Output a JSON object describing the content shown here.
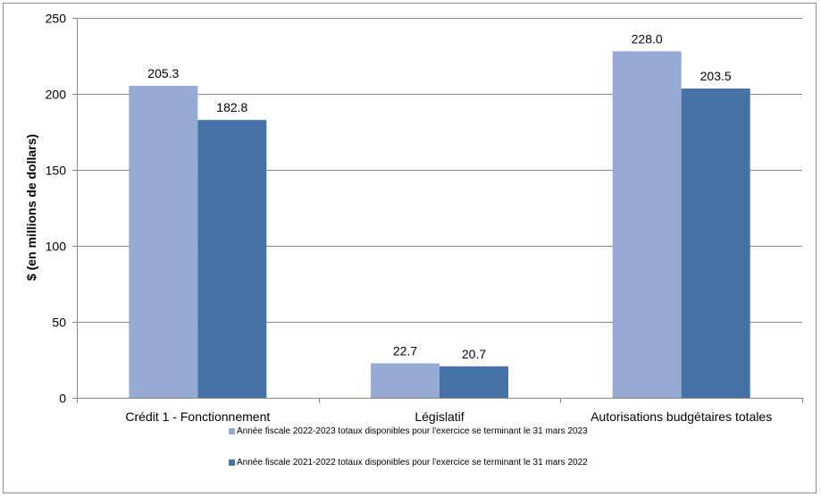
{
  "chart_data": {
    "type": "bar",
    "title": "",
    "xlabel": "",
    "ylabel": "$ (en millions de dollars)",
    "ylim": [
      0,
      250
    ],
    "yticks": [
      0,
      50,
      100,
      150,
      200,
      250
    ],
    "categories": [
      "Crédit 1 - Fonctionnement",
      "Législatif",
      "Autorisations budgétaires totales"
    ],
    "series": [
      {
        "name": "Année fiscale 2022-2023 totaux disponibles pour l'exercice se terminant le 31 mars 2023",
        "values": [
          205.3,
          22.7,
          228.0
        ],
        "labels": [
          "205.3",
          "22.7",
          "228.0"
        ],
        "color": "#95abd3"
      },
      {
        "name": "Année fiscale 2021-2022 totaux disponibles pour l'exercice se terminant le 31 mars 2022",
        "values": [
          182.8,
          20.7,
          203.5
        ],
        "labels": [
          "182.8",
          "20.7",
          "203.5"
        ],
        "color": "#4572a7"
      }
    ],
    "legend_position": "bottom",
    "grid": true
  }
}
